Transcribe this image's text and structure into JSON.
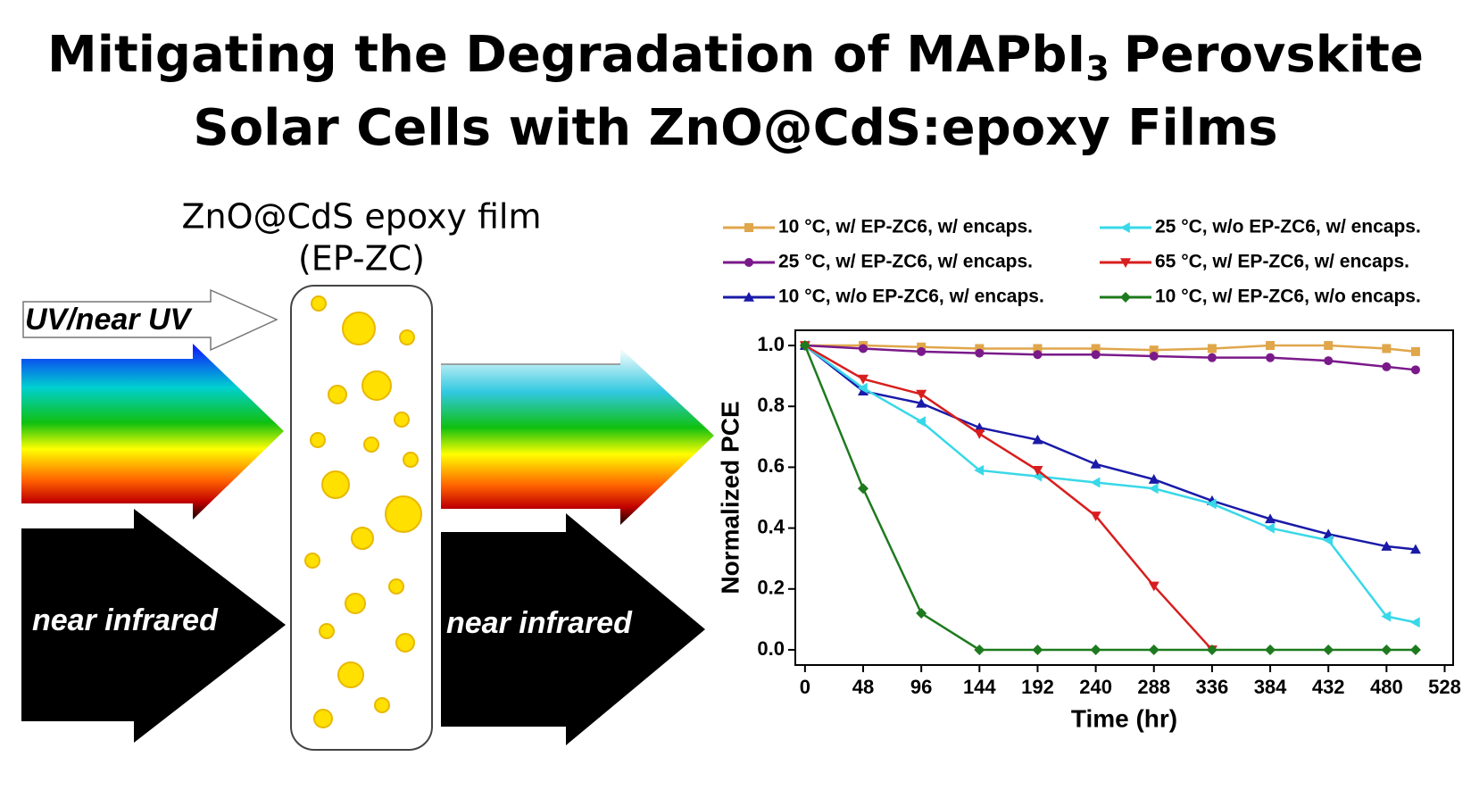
{
  "title": {
    "line1_start": "Mitigating the Degradation of MAPbI",
    "subscript": "3",
    "line1_end": "Perovskite",
    "line2": "Solar Cells with ZnO@CdS:epoxy Films"
  },
  "diagram": {
    "film_label": "ZnO@CdS epoxy film",
    "film_abbrev": "(EP-ZC)",
    "uv_label": "UV/near UV",
    "nir_in": "near infrared",
    "nir_out": "near infrared"
  },
  "chart_data": {
    "type": "line",
    "x_label": "Time (hr)",
    "y_label": "Normalized PCE",
    "x": [
      0,
      48,
      96,
      144,
      192,
      240,
      288,
      336,
      384,
      432,
      480,
      504
    ],
    "xlim": [
      -8,
      535
    ],
    "xticks": [
      0,
      48,
      96,
      144,
      192,
      240,
      288,
      336,
      384,
      432,
      480,
      528
    ],
    "ylim": [
      -0.05,
      1.05
    ],
    "yticks": [
      {
        "value": 0,
        "label": "0.0"
      },
      0.2,
      0.4,
      0.6,
      0.8,
      {
        "value": 1,
        "label": "1.0"
      }
    ],
    "series": [
      {
        "name": "10 °C, w/ EP-ZC6, w/ encaps.",
        "color": "#e0a64a",
        "marker": "square",
        "values": [
          1,
          1.0,
          0.995,
          0.99,
          0.99,
          0.99,
          0.985,
          0.99,
          1.0,
          1.0,
          0.99,
          0.98
        ]
      },
      {
        "name": "25 °C, w/ EP-ZC6, w/ encaps.",
        "color": "#7a1a8a",
        "marker": "circle",
        "values": [
          1,
          0.99,
          0.98,
          0.975,
          0.97,
          0.97,
          0.965,
          0.96,
          0.96,
          0.95,
          0.93,
          0.92
        ]
      },
      {
        "name": "10 °C, w/o EP-ZC6, w/ encaps.",
        "color": "#1a1aa8",
        "marker": "triangle-up",
        "values": [
          1,
          0.85,
          0.81,
          0.73,
          0.69,
          0.61,
          0.56,
          0.49,
          0.43,
          0.38,
          0.34,
          0.33
        ]
      },
      {
        "name": "25 °C, w/o EP-ZC6, w/ encaps.",
        "color": "#38d8e8",
        "marker": "triangle-left",
        "values": [
          1,
          0.86,
          0.75,
          0.59,
          0.57,
          0.55,
          0.53,
          0.48,
          0.4,
          0.36,
          0.11,
          0.09
        ]
      },
      {
        "name": "65 °C, w/ EP-ZC6, w/ encaps.",
        "color": "#d81e1e",
        "marker": "triangle-down",
        "values": [
          1,
          0.89,
          0.84,
          0.71,
          0.59,
          0.44,
          0.21,
          0,
          null,
          null,
          null,
          null
        ]
      },
      {
        "name": "10 °C, w/ EP-ZC6, w/o encaps.",
        "color": "#1e7a1e",
        "marker": "diamond",
        "values": [
          1,
          0.53,
          0.12,
          0,
          0,
          0,
          0,
          0,
          0,
          0,
          0,
          0
        ]
      }
    ]
  }
}
